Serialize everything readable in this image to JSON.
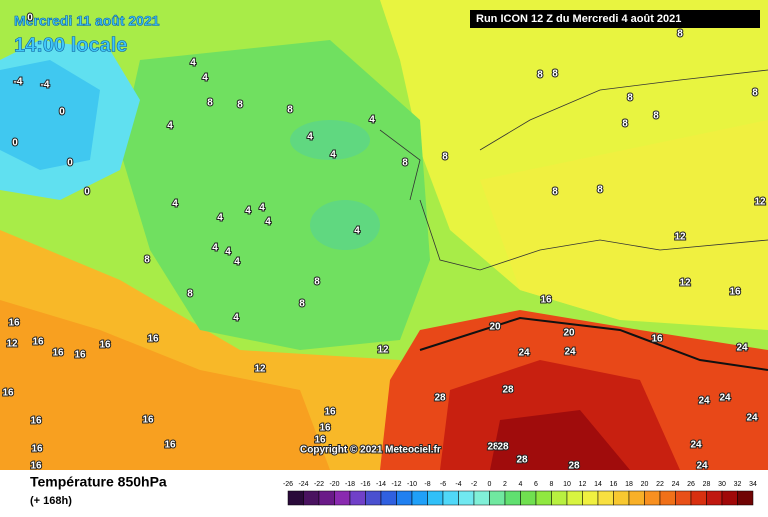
{
  "header": {
    "date": "Mercredi 11 août 2021",
    "time": "14:00 locale",
    "run": "Run ICON 12 Z du Mercredi 4 août 2021"
  },
  "copyright": "Copyright © 2021 Meteociel.fr",
  "footer": {
    "title": "Température 850hPa",
    "lead": "(+ 168h)"
  },
  "legend": {
    "ticks": [
      -26,
      -24,
      -22,
      -20,
      -18,
      -16,
      -14,
      -12,
      -10,
      -8,
      -6,
      -4,
      -2,
      0,
      2,
      4,
      6,
      8,
      10,
      12,
      14,
      16,
      18,
      20,
      22,
      24,
      26,
      28,
      30,
      32,
      34
    ],
    "colors": [
      "#2a0a3a",
      "#4a1260",
      "#6a1a88",
      "#8a2ab0",
      "#7040c8",
      "#4a50d0",
      "#3060e0",
      "#2080f0",
      "#20a0f8",
      "#30c0f8",
      "#50d8f8",
      "#70e8f0",
      "#80f0d8",
      "#70e8a0",
      "#60e070",
      "#70e050",
      "#90e840",
      "#b8f040",
      "#d8f440",
      "#f0f040",
      "#f8e040",
      "#f8c830",
      "#f8b028",
      "#f89020",
      "#f07018",
      "#e85018",
      "#d83010",
      "#c01810",
      "#a00808",
      "#700404"
    ]
  },
  "contour_labels": [
    0,
    -4,
    -4,
    0,
    0,
    0,
    0,
    4,
    4,
    8,
    8,
    8,
    4,
    4,
    4,
    4,
    8,
    8,
    4,
    4,
    4,
    4,
    4,
    4,
    4,
    4,
    4,
    8,
    8,
    4,
    8,
    8,
    16,
    12,
    16,
    16,
    16,
    16,
    16,
    12,
    12,
    20,
    16,
    20,
    24,
    24,
    28,
    28,
    28,
    28,
    28,
    28,
    16,
    24,
    24,
    24,
    24,
    24,
    24,
    12,
    12,
    16,
    12,
    16,
    16,
    16,
    16,
    16,
    16,
    16,
    16,
    16,
    8,
    8,
    8,
    8,
    8,
    8,
    8,
    8,
    8
  ]
}
